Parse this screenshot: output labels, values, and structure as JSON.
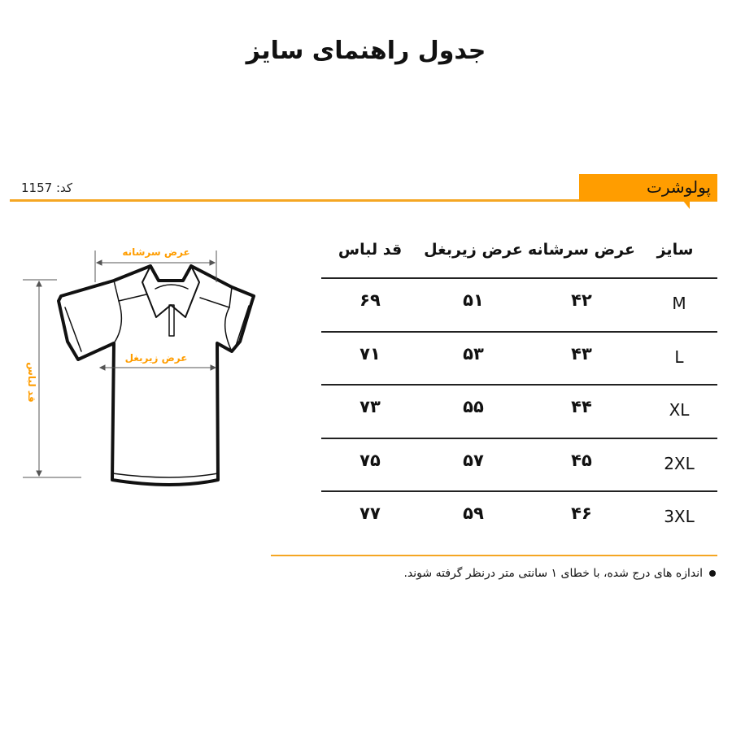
{
  "title": "جدول راهنمای سایز",
  "product_code": "کد: 1157",
  "category": "پولوشرت",
  "accent_color": "#ff9d00",
  "diagram": {
    "shoulder_label": "عرض سرشانه",
    "chest_label": "عرض زیربغل",
    "length_label": "قد لباس"
  },
  "table": {
    "headers": [
      "سایز",
      "عرض سرشانه",
      "عرض زیربغل",
      "قد لباس"
    ],
    "rows": [
      [
        "M",
        "۴۲",
        "۵۱",
        "۶۹"
      ],
      [
        "L",
        "۴۳",
        "۵۳",
        "۷۱"
      ],
      [
        "XL",
        "۴۴",
        "۵۵",
        "۷۳"
      ],
      [
        "2XL",
        "۴۵",
        "۵۷",
        "۷۵"
      ],
      [
        "3XL",
        "۴۶",
        "۵۹",
        "۷۷"
      ]
    ]
  },
  "note": "اندازه های درج شده، با خطای ۱ سانتی متر درنظر گرفته شوند."
}
